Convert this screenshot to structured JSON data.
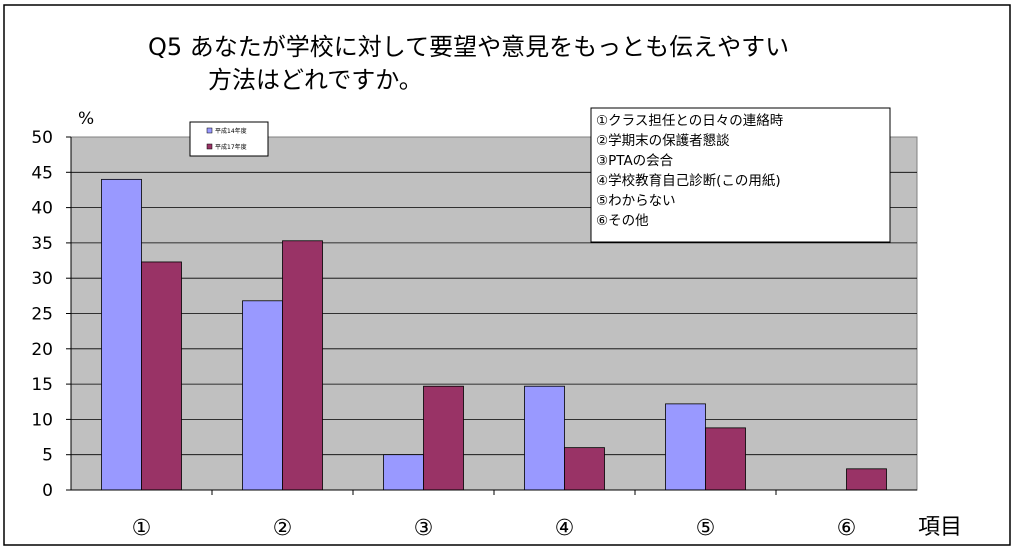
{
  "chart_data": {
    "type": "bar",
    "title_line1": "Q5 あなたが学校に対して要望や意見をもっとも伝えやすい",
    "title_line2": "方法はどれですか。",
    "ylabel": "%",
    "xlabel": "項目",
    "ylim": [
      0,
      50
    ],
    "yticks": [
      "0",
      "5",
      "10",
      "15",
      "20",
      "25",
      "30",
      "35",
      "40",
      "45",
      "50"
    ],
    "categories": [
      "①",
      "②",
      "③",
      "④",
      "⑤",
      "⑥"
    ],
    "series": [
      {
        "name": "平成14年度",
        "color": "#9999ff",
        "values": [
          44,
          26.8,
          5,
          14.7,
          12.2,
          0
        ]
      },
      {
        "name": "平成17年度",
        "color": "#993366",
        "values": [
          32.3,
          35.3,
          14.7,
          6,
          8.8,
          3
        ]
      }
    ],
    "plot_background": "#c0c0c0",
    "grid": true,
    "legend_position": "top-left",
    "item_key": [
      "①クラス担任との日々の連絡時",
      "②学期末の保護者懇談",
      "③PTAの会合",
      "④学校教育自己診断(この用紙)",
      "⑤わからない",
      "⑥その他"
    ]
  }
}
